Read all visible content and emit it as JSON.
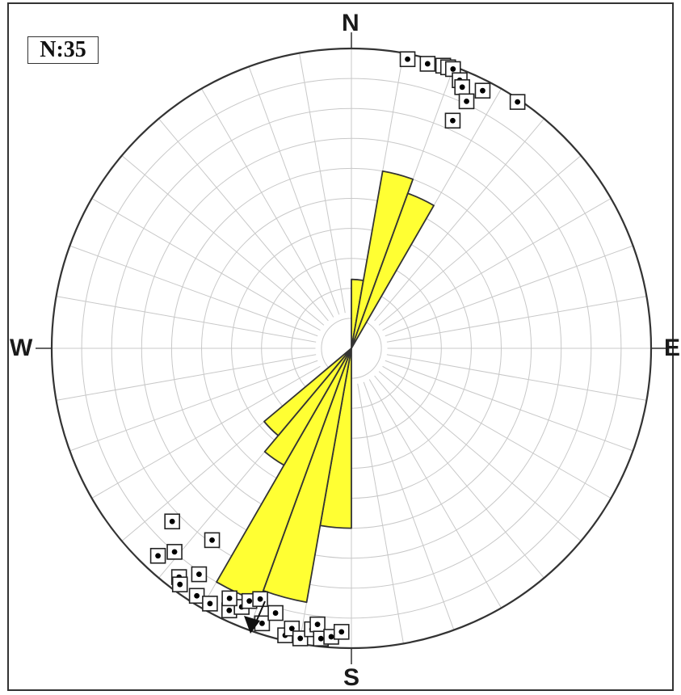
{
  "count_label": "N:35",
  "directions": {
    "north": "N",
    "south": "S",
    "east": "E",
    "west": "W"
  },
  "colors": {
    "petal": "#ffff33",
    "petal_stroke": "#333333",
    "grid": "#c8c8c8",
    "outline": "#333333"
  },
  "chart_data": {
    "type": "rose",
    "title": "",
    "bin_width_deg": 10,
    "rings": 10,
    "petals": [
      {
        "from_deg": 0,
        "to_deg": 10,
        "relative_length": 0.23
      },
      {
        "from_deg": 10,
        "to_deg": 20,
        "relative_length": 0.6
      },
      {
        "from_deg": 20,
        "to_deg": 30,
        "relative_length": 0.55
      },
      {
        "from_deg": 180,
        "to_deg": 190,
        "relative_length": 0.6
      },
      {
        "from_deg": 190,
        "to_deg": 200,
        "relative_length": 0.86
      },
      {
        "from_deg": 200,
        "to_deg": 210,
        "relative_length": 0.9
      },
      {
        "from_deg": 210,
        "to_deg": 220,
        "relative_length": 0.45
      },
      {
        "from_deg": 220,
        "to_deg": 230,
        "relative_length": 0.38
      }
    ],
    "poles": [
      {
        "azimuth_deg": 11,
        "plunge_deg": 2
      },
      {
        "azimuth_deg": 15,
        "plunge_deg": 2
      },
      {
        "azimuth_deg": 18,
        "plunge_deg": 1
      },
      {
        "azimuth_deg": 19,
        "plunge_deg": 1
      },
      {
        "azimuth_deg": 20,
        "plunge_deg": 1
      },
      {
        "azimuth_deg": 22,
        "plunge_deg": 4
      },
      {
        "azimuth_deg": 23,
        "plunge_deg": 6
      },
      {
        "azimuth_deg": 27,
        "plunge_deg": 4
      },
      {
        "azimuth_deg": 25,
        "plunge_deg": 10
      },
      {
        "azimuth_deg": 34,
        "plunge_deg": 1
      },
      {
        "azimuth_deg": 24,
        "plunge_deg": 18
      },
      {
        "azimuth_deg": 216,
        "plunge_deg": 22
      },
      {
        "azimuth_deg": 226,
        "plunge_deg": 18
      },
      {
        "azimuth_deg": 221,
        "plunge_deg": 11
      },
      {
        "azimuth_deg": 223,
        "plunge_deg": 6
      },
      {
        "azimuth_deg": 217,
        "plunge_deg": 5
      },
      {
        "azimuth_deg": 214,
        "plunge_deg": 10
      },
      {
        "azimuth_deg": 216,
        "plunge_deg": 3
      },
      {
        "azimuth_deg": 212,
        "plunge_deg": 3
      },
      {
        "azimuth_deg": 209,
        "plunge_deg": 3
      },
      {
        "azimuth_deg": 205,
        "plunge_deg": 4
      },
      {
        "azimuth_deg": 203,
        "plunge_deg": 7
      },
      {
        "azimuth_deg": 202,
        "plunge_deg": 10
      },
      {
        "azimuth_deg": 198,
        "plunge_deg": 4
      },
      {
        "azimuth_deg": 196,
        "plunge_deg": 9
      },
      {
        "azimuth_deg": 193,
        "plunge_deg": 2
      },
      {
        "azimuth_deg": 192,
        "plunge_deg": 5
      },
      {
        "azimuth_deg": 190,
        "plunge_deg": 2
      },
      {
        "azimuth_deg": 188,
        "plunge_deg": 6
      },
      {
        "azimuth_deg": 187,
        "plunge_deg": 8
      },
      {
        "azimuth_deg": 186,
        "plunge_deg": 3
      },
      {
        "azimuth_deg": 184,
        "plunge_deg": 4
      },
      {
        "azimuth_deg": 182,
        "plunge_deg": 6
      },
      {
        "azimuth_deg": 200,
        "plunge_deg": 12
      },
      {
        "azimuth_deg": 206,
        "plunge_deg": 8
      }
    ]
  }
}
